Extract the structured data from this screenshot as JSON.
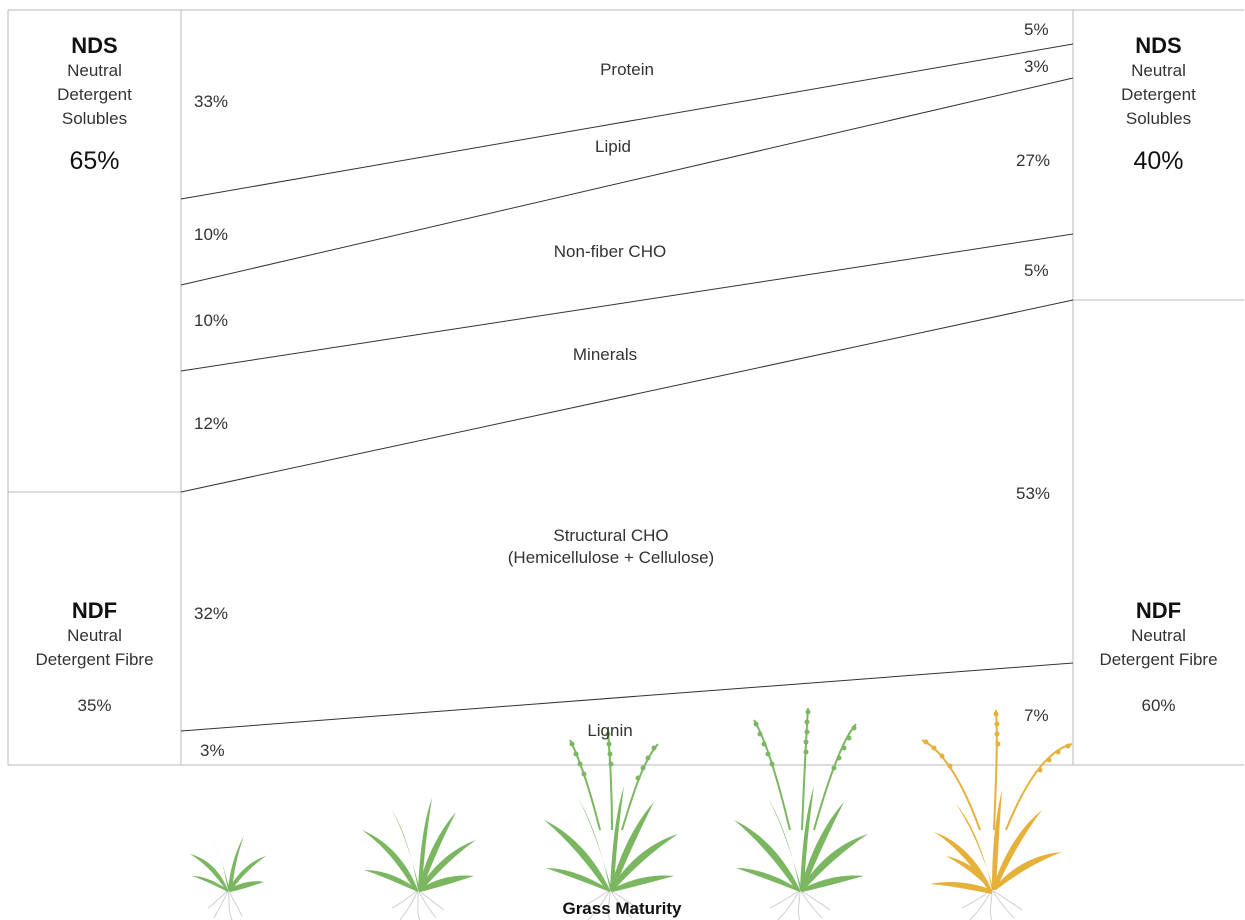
{
  "left": {
    "nds": {
      "abbr": "NDS",
      "line1": "Neutral",
      "line2": "Detergent",
      "line3": "Solubles",
      "percent": "65%"
    },
    "ndf": {
      "abbr": "NDF",
      "line1": "Neutral",
      "line2": "Detergent Fibre",
      "percent": "35%"
    }
  },
  "right": {
    "nds": {
      "abbr": "NDS",
      "line1": "Neutral",
      "line2": "Detergent",
      "line3": "Solubles",
      "percent": "40%"
    },
    "ndf": {
      "abbr": "NDF",
      "line1": "Neutral",
      "line2": "Detergent Fibre",
      "percent": "60%"
    }
  },
  "bands": [
    {
      "name": "Protein",
      "left": "33%",
      "right": "5%"
    },
    {
      "name": "Lipid",
      "left": "10%",
      "right": "3%"
    },
    {
      "name": "Non-fiber CHO",
      "left": "10%",
      "right": "27%"
    },
    {
      "name": "Minerals",
      "left": "12%",
      "right": "5%"
    },
    {
      "name": "Structural CHO",
      "name2": "(Hemicellulose + Cellulose)",
      "left": "32%",
      "right": "53%"
    },
    {
      "name": "Lignin",
      "left": "3%",
      "right": "7%"
    }
  ],
  "footer": "Grass Maturity",
  "colors": {
    "grass_green": "#7bb661",
    "grass_yellow": "#e5b13a",
    "roots": "#c9c9c9",
    "lines": "#333333"
  }
}
